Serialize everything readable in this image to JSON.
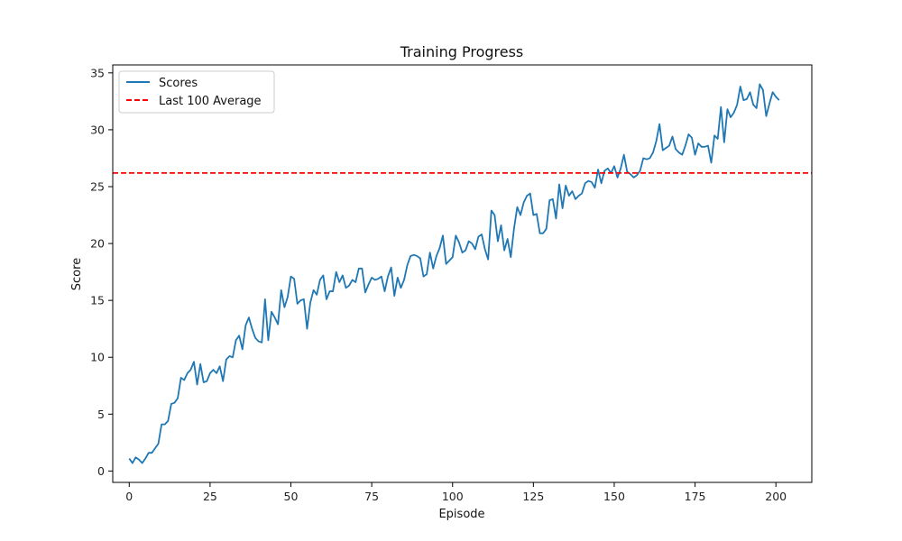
{
  "chart_data": {
    "type": "line",
    "title": "Training Progress",
    "xlabel": "Episode",
    "ylabel": "Score",
    "xlim": [
      -5.1,
      211.1
    ],
    "ylim": [
      -1.0,
      35.7
    ],
    "xticks": [
      0,
      25,
      50,
      75,
      100,
      125,
      150,
      175,
      200
    ],
    "yticks": [
      0,
      5,
      10,
      15,
      20,
      25,
      30,
      35
    ],
    "grid": false,
    "legend_position": "upper-left",
    "series": [
      {
        "name": "Scores",
        "color": "#1f77b4",
        "style": "solid",
        "x": [
          0,
          1,
          2,
          3,
          4,
          5,
          6,
          7,
          8,
          9,
          10,
          11,
          12,
          13,
          14,
          15,
          16,
          17,
          18,
          19,
          20,
          21,
          22,
          23,
          24,
          25,
          26,
          27,
          28,
          29,
          30,
          31,
          32,
          33,
          34,
          35,
          36,
          37,
          38,
          39,
          40,
          41,
          42,
          43,
          44,
          45,
          46,
          47,
          48,
          49,
          50,
          51,
          52,
          53,
          54,
          55,
          56,
          57,
          58,
          59,
          60,
          61,
          62,
          63,
          64,
          65,
          66,
          67,
          68,
          69,
          70,
          71,
          72,
          73,
          74,
          75,
          76,
          77,
          78,
          79,
          80,
          81,
          82,
          83,
          84,
          85,
          86,
          87,
          88,
          89,
          90,
          91,
          92,
          93,
          94,
          95,
          96,
          97,
          98,
          99,
          100,
          101,
          102,
          103,
          104,
          105,
          106,
          107,
          108,
          109,
          110,
          111,
          112,
          113,
          114,
          115,
          116,
          117,
          118,
          119,
          120,
          121,
          122,
          123,
          124,
          125,
          126,
          127,
          128,
          129,
          130,
          131,
          132,
          133,
          134,
          135,
          136,
          137,
          138,
          139,
          140,
          141,
          142,
          143,
          144,
          145,
          146,
          147,
          148,
          149,
          150,
          151,
          152,
          153,
          154,
          155,
          156,
          157,
          158,
          159,
          160,
          161,
          162,
          163,
          164,
          165,
          166,
          167,
          168,
          169,
          170,
          171,
          172,
          173,
          174,
          175,
          176,
          177,
          178,
          179,
          180,
          181,
          182,
          183,
          184,
          185,
          186,
          187,
          188,
          189,
          190,
          191,
          192,
          193,
          194,
          195,
          196,
          197,
          198,
          199,
          200,
          201
        ],
        "y": [
          1.1,
          0.7,
          1.2,
          1.0,
          0.7,
          1.1,
          1.6,
          1.6,
          2.0,
          2.4,
          4.1,
          4.1,
          4.4,
          5.9,
          6.0,
          6.4,
          8.2,
          8.0,
          8.6,
          8.9,
          9.6,
          7.6,
          9.4,
          7.8,
          7.9,
          8.6,
          8.9,
          8.6,
          9.2,
          7.9,
          9.8,
          10.1,
          10.0,
          11.5,
          11.9,
          10.7,
          12.8,
          13.5,
          12.5,
          11.7,
          11.4,
          11.3,
          15.1,
          11.5,
          14.0,
          13.5,
          12.9,
          15.9,
          14.4,
          15.3,
          17.1,
          16.9,
          14.7,
          15.0,
          15.1,
          12.5,
          14.8,
          15.9,
          15.5,
          16.8,
          17.2,
          15.1,
          15.8,
          15.8,
          17.5,
          16.6,
          17.2,
          16.1,
          16.3,
          16.8,
          16.6,
          17.8,
          17.8,
          15.7,
          16.4,
          17.0,
          16.8,
          16.9,
          17.1,
          15.8,
          17.1,
          17.9,
          15.4,
          17.0,
          16.1,
          16.8,
          18.1,
          18.9,
          19.0,
          18.9,
          18.7,
          17.1,
          17.3,
          19.2,
          17.8,
          18.9,
          19.6,
          20.7,
          18.2,
          18.5,
          18.8,
          20.7,
          20.1,
          19.2,
          19.4,
          20.2,
          20.0,
          19.5,
          20.6,
          20.8,
          19.5,
          18.6,
          22.9,
          22.5,
          20.2,
          21.6,
          19.4,
          20.4,
          18.8,
          21.3,
          23.2,
          22.5,
          23.6,
          24.2,
          24.4,
          22.5,
          22.6,
          20.9,
          20.9,
          21.3,
          23.8,
          23.9,
          22.2,
          25.2,
          23.1,
          25.1,
          24.2,
          24.6,
          23.9,
          24.2,
          24.4,
          25.3,
          25.5,
          25.4,
          24.9,
          26.5,
          25.3,
          26.4,
          26.6,
          26.2,
          26.8,
          25.8,
          26.6,
          27.8,
          26.3,
          26.1,
          25.8,
          26.0,
          26.4,
          27.5,
          27.4,
          27.5,
          28.0,
          29.0,
          30.5,
          28.2,
          28.4,
          28.6,
          29.4,
          28.3,
          28.0,
          27.8,
          28.6,
          29.6,
          29.3,
          27.8,
          28.8,
          28.5,
          28.5,
          28.6,
          27.1,
          29.5,
          29.2,
          32.0,
          28.9,
          31.8,
          31.1,
          31.5,
          32.2,
          33.8,
          32.6,
          32.7,
          33.3,
          32.2,
          31.9,
          34.0,
          33.5,
          31.2,
          32.3,
          33.3,
          32.9,
          32.6
        ]
      },
      {
        "name": "Last 100 Average",
        "color": "#ff0000",
        "style": "dashed",
        "value": 26.2
      }
    ]
  }
}
